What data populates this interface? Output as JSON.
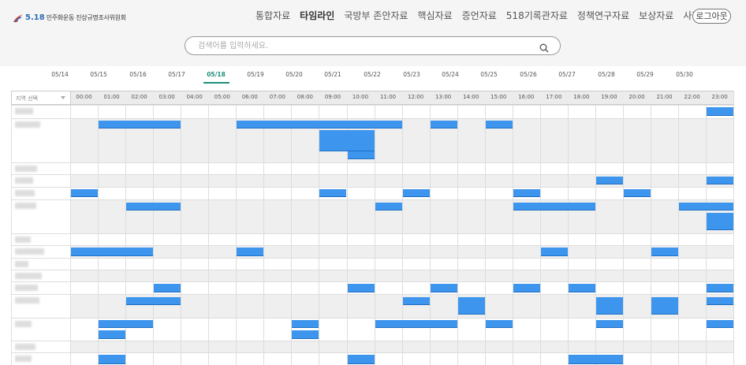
{
  "logo": {
    "number": "5.18",
    "text": "민주화운동 진상규명조사위원회",
    "accent": "#2a6db5"
  },
  "nav": {
    "items": [
      "통합자료",
      "타임라인",
      "국방부 존안자료",
      "핵심자료",
      "증언자료",
      "518기록관자료",
      "정책연구자료",
      "보상자료",
      "사진자료"
    ],
    "active": "타임라인"
  },
  "logout_label": "로그아웃",
  "search": {
    "placeholder": "검색어를 입력하세요."
  },
  "dates": {
    "items": [
      "05/14",
      "05/15",
      "05/16",
      "05/17",
      "05/18",
      "05/19",
      "05/20",
      "05/21",
      "05/22",
      "05/23",
      "05/24",
      "05/25",
      "05/26",
      "05/27",
      "05/28",
      "05/29",
      "05/30"
    ],
    "active": "05/18"
  },
  "region_select": {
    "label": "지역 선택"
  },
  "hours": [
    "00:00",
    "01:00",
    "02:00",
    "03:00",
    "04:00",
    "05:00",
    "06:00",
    "07:00",
    "08:00",
    "09:00",
    "10:00",
    "11:00",
    "12:00",
    "13:00",
    "14:00",
    "15:00",
    "16:00",
    "17:00",
    "18:00",
    "19:00",
    "20:00",
    "21:00",
    "22:00",
    "23:00"
  ],
  "colors": {
    "event_bar": "#3d95ee",
    "active_date": "#1f8f7a",
    "row_shade": "#efefef"
  }
}
